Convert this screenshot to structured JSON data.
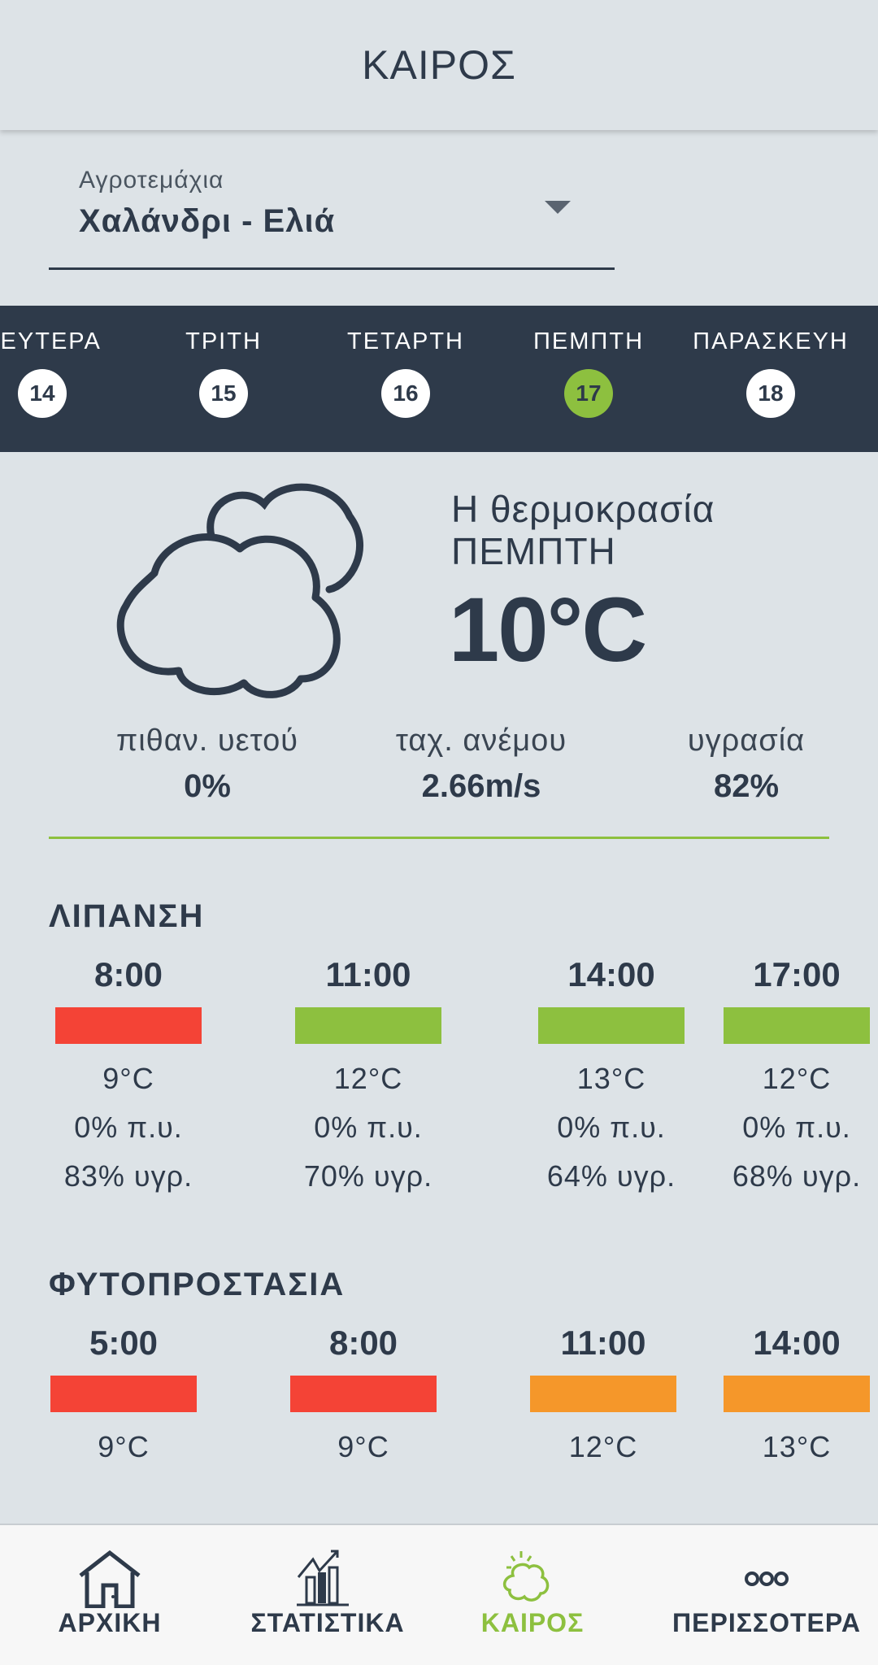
{
  "header": {
    "title": "ΚΑΙΡΟΣ"
  },
  "field_select": {
    "label": "Αγροτεμάχια",
    "value": "Χαλάνδρι - Ελιά"
  },
  "days": [
    {
      "label": "ΔΕΥΤΕΡΑ",
      "num": "14",
      "selected": false
    },
    {
      "label": "ΤΡΙΤΗ",
      "num": "15",
      "selected": false
    },
    {
      "label": "ΤΕΤΑΡΤΗ",
      "num": "16",
      "selected": false
    },
    {
      "label": "ΠΕΜΠΤΗ",
      "num": "17",
      "selected": true
    },
    {
      "label": "ΠΑΡΑΣΚΕΥΗ",
      "num": "18",
      "selected": false
    }
  ],
  "current": {
    "icon": "cloud-icon",
    "label_line1": "Η θερμοκρασία",
    "label_line2": "ΠΕΜΠΤΗ",
    "temp": "10°C",
    "stats": [
      {
        "label": "πιθαν. υετού",
        "value": "0%"
      },
      {
        "label": "ταχ. ανέμου",
        "value": "2.66m/s"
      },
      {
        "label": "υγρασία",
        "value": "82%"
      }
    ]
  },
  "colors": {
    "dark": "#2e3a4a",
    "green": "#8dc03f",
    "red": "#f44336",
    "orange": "#f5972a",
    "background": "#dde3e7"
  },
  "lipansi": {
    "title": "ΛΙΠΑΝΣΗ",
    "slots": [
      {
        "time": "8:00",
        "status": "red",
        "temp": "9°C",
        "rain": "0% π.υ.",
        "hum": "83% υγρ."
      },
      {
        "time": "11:00",
        "status": "green",
        "temp": "12°C",
        "rain": "0% π.υ.",
        "hum": "70% υγρ."
      },
      {
        "time": "14:00",
        "status": "green",
        "temp": "13°C",
        "rain": "0% π.υ.",
        "hum": "64% υγρ."
      },
      {
        "time": "17:00",
        "status": "green",
        "temp": "12°C",
        "rain": "0% π.υ.",
        "hum": "68% υγρ."
      }
    ]
  },
  "fytoprostasia": {
    "title": "ΦΥΤΟΠΡΟΣΤΑΣΙΑ",
    "slots": [
      {
        "time": "5:00",
        "status": "red",
        "temp": "9°C"
      },
      {
        "time": "8:00",
        "status": "red",
        "temp": "9°C"
      },
      {
        "time": "11:00",
        "status": "orange",
        "temp": "12°C"
      },
      {
        "time": "14:00",
        "status": "orange",
        "temp": "13°C"
      }
    ]
  },
  "nav": [
    {
      "label": "ΑΡΧΙΚΗ",
      "icon": "home-icon"
    },
    {
      "label": "ΣΤΑΤΙΣΤΙΚΑ",
      "icon": "stats-chart-icon"
    },
    {
      "label": "ΚΑΙΡΟΣ",
      "icon": "weather-icon",
      "active": true
    },
    {
      "label": "ΠΕΡΙΣΣΟΤΕΡΑ",
      "icon": "more-icon"
    }
  ]
}
